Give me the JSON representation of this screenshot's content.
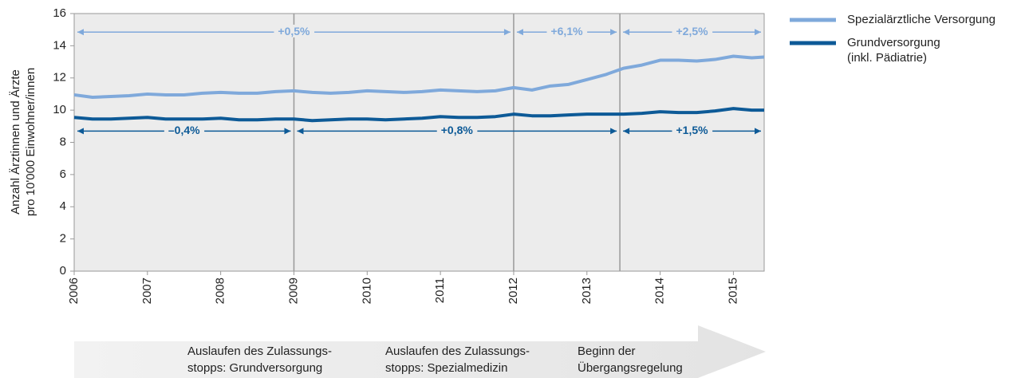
{
  "chart_data": {
    "type": "line",
    "ylabel": [
      "Anzahl Ärztinnen und Ärzte",
      "pro 10'000 Einwohner/innen"
    ],
    "x": [
      2006,
      2006.25,
      2006.5,
      2006.75,
      2007,
      2007.25,
      2007.5,
      2007.75,
      2008,
      2008.25,
      2008.5,
      2008.75,
      2009,
      2009.25,
      2009.5,
      2009.75,
      2010,
      2010.25,
      2010.5,
      2010.75,
      2011,
      2011.25,
      2011.5,
      2011.75,
      2012,
      2012.25,
      2012.5,
      2012.75,
      2013,
      2013.25,
      2013.5,
      2013.75,
      2014,
      2014.25,
      2014.5,
      2014.75,
      2015,
      2015.25,
      2015.42
    ],
    "series": [
      {
        "name": "Spezialärztliche Versorgung",
        "color": "#7fa9db",
        "values": [
          10.95,
          10.8,
          10.85,
          10.9,
          11.0,
          10.95,
          10.95,
          11.05,
          11.1,
          11.05,
          11.05,
          11.15,
          11.2,
          11.1,
          11.05,
          11.1,
          11.2,
          11.15,
          11.1,
          11.15,
          11.25,
          11.2,
          11.15,
          11.2,
          11.4,
          11.25,
          11.5,
          11.6,
          11.9,
          12.2,
          12.6,
          12.8,
          13.1,
          13.1,
          13.05,
          13.15,
          13.35,
          13.25,
          13.3
        ]
      },
      {
        "name": "Grundversorgung (inkl. Pädiatrie)",
        "color": "#0d5a97",
        "values": [
          9.55,
          9.45,
          9.45,
          9.5,
          9.55,
          9.45,
          9.45,
          9.45,
          9.5,
          9.4,
          9.4,
          9.45,
          9.45,
          9.35,
          9.4,
          9.45,
          9.45,
          9.4,
          9.45,
          9.5,
          9.6,
          9.55,
          9.55,
          9.6,
          9.75,
          9.65,
          9.65,
          9.7,
          9.75,
          9.75,
          9.75,
          9.8,
          9.9,
          9.85,
          9.85,
          9.95,
          10.1,
          10.0,
          10.0
        ]
      }
    ],
    "xlim": [
      2006,
      2015.42
    ],
    "xticks": [
      2006,
      2007,
      2008,
      2009,
      2010,
      2011,
      2012,
      2013,
      2014,
      2015
    ],
    "ylim": [
      0,
      16
    ],
    "yticks": [
      0,
      2,
      4,
      6,
      8,
      10,
      12,
      14,
      16
    ],
    "grid": false,
    "vlines": [
      2009,
      2012,
      2013.45
    ],
    "annotations": [
      {
        "text": "+0,5%",
        "x0": 2006,
        "x1": 2012,
        "y": 14.85,
        "series": 0
      },
      {
        "text": "+6,1%",
        "x0": 2012,
        "x1": 2013.45,
        "y": 14.85,
        "series": 0
      },
      {
        "text": "+2,5%",
        "x0": 2013.45,
        "x1": 2015.42,
        "y": 14.85,
        "series": 0
      },
      {
        "text": "–0,4%",
        "x0": 2006,
        "x1": 2009,
        "y": 8.7,
        "series": 1
      },
      {
        "text": "+0,8%",
        "x0": 2009,
        "x1": 2013.45,
        "y": 8.7,
        "series": 1
      },
      {
        "text": "+1,5%",
        "x0": 2013.45,
        "x1": 2015.42,
        "y": 8.7,
        "series": 1
      }
    ],
    "events": [
      {
        "lines": [
          "Auslaufen des Zulassungs-",
          "stopps: Grundversorgung"
        ]
      },
      {
        "lines": [
          "Auslaufen des Zulassungs-",
          "stopps: Spezialmedizin"
        ]
      },
      {
        "lines": [
          "Beginn der",
          "Übergangsregelung"
        ]
      }
    ]
  }
}
